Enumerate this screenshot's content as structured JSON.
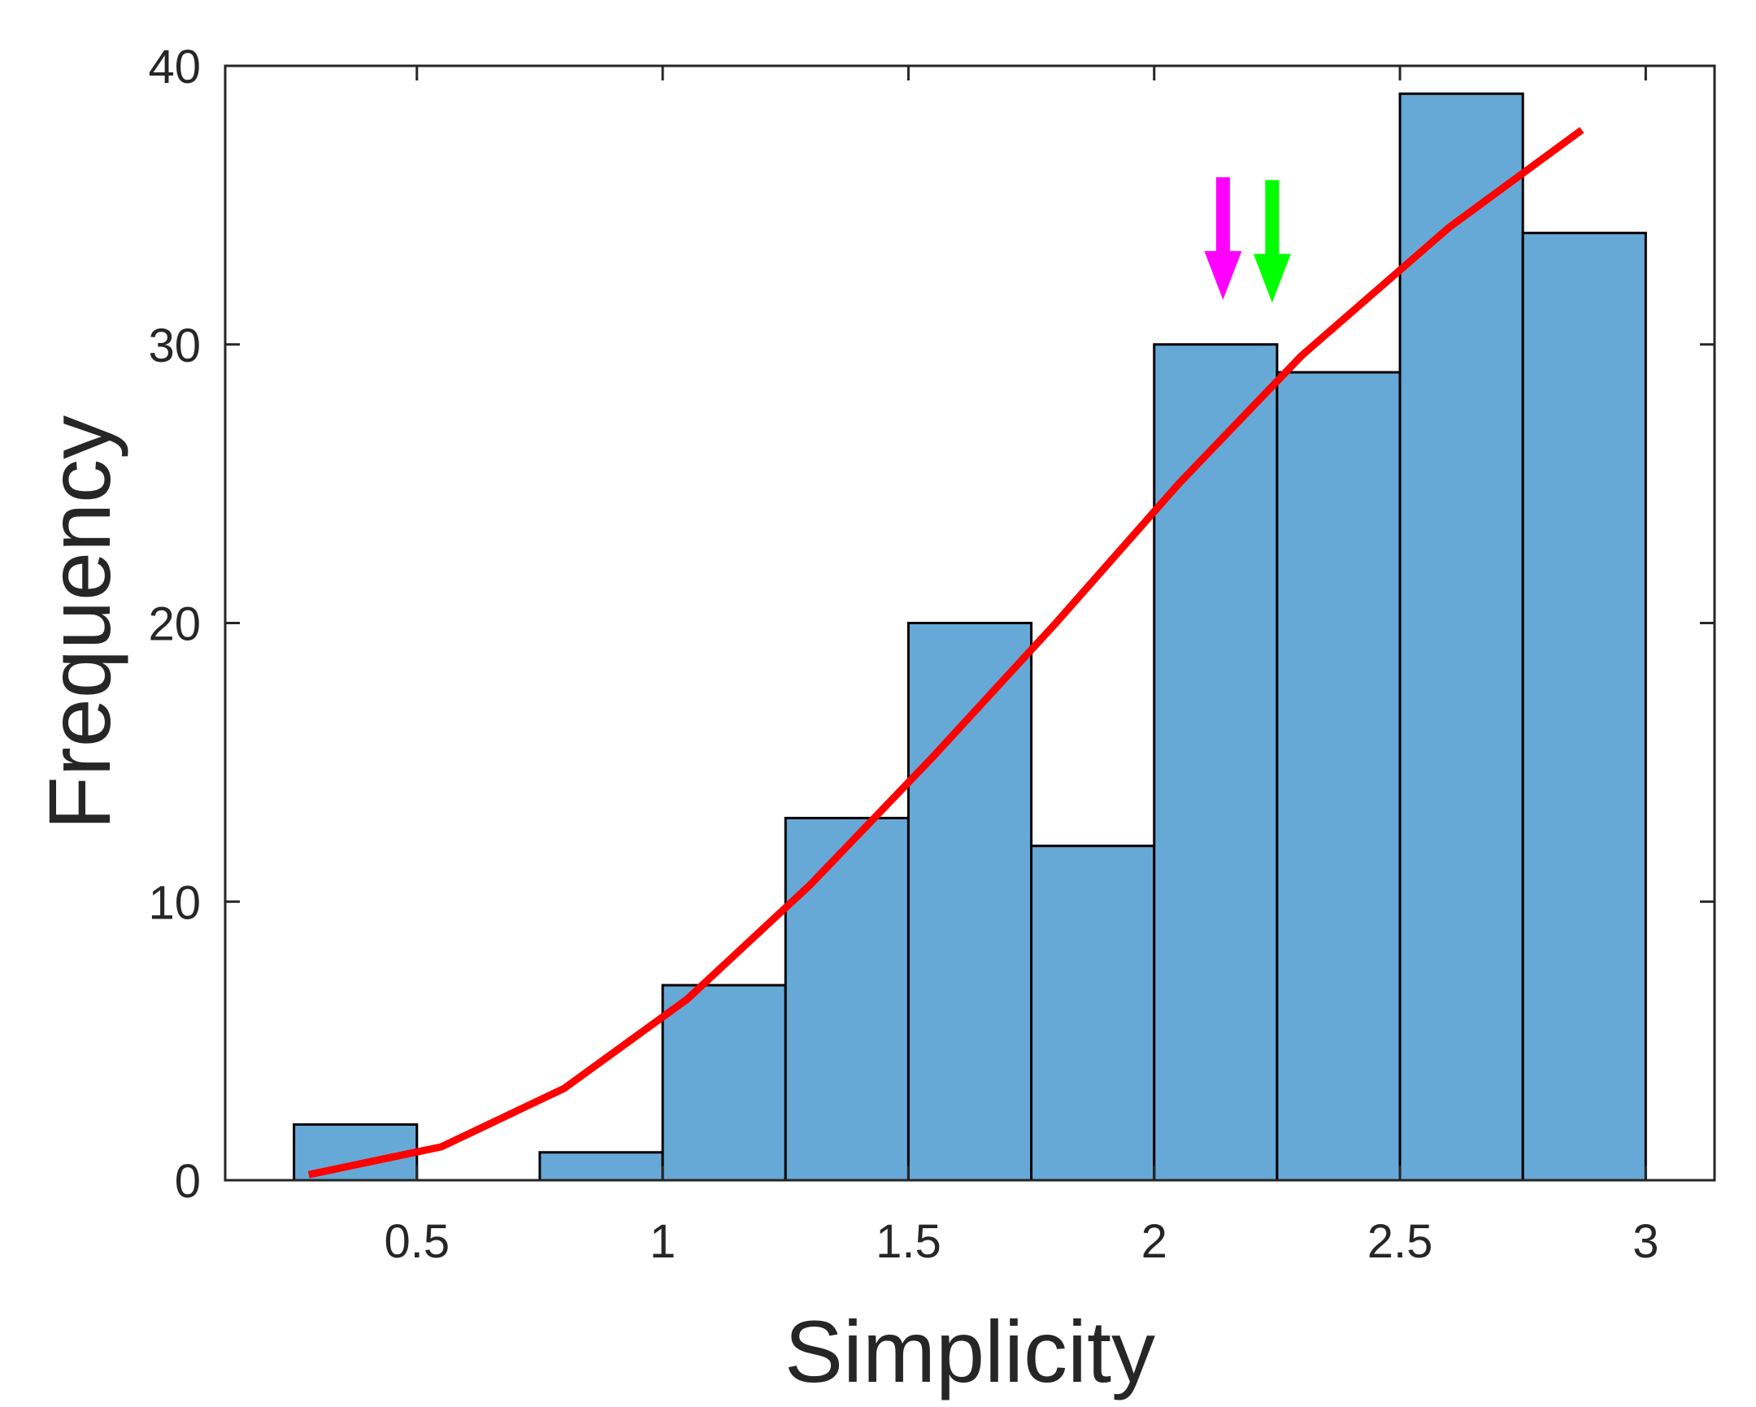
{
  "chart_data": {
    "type": "bar",
    "subtype": "histogram-with-fit-curve",
    "title": "",
    "xlabel": "Simplicity",
    "ylabel": "Frequency",
    "xlim": [
      0.11,
      3.14
    ],
    "ylim": [
      0,
      40
    ],
    "grid": false,
    "legend": null,
    "x_ticks": [
      0.5,
      1,
      1.5,
      2,
      2.5,
      3
    ],
    "x_tick_labels": [
      "0.5",
      "1",
      "1.5",
      "2",
      "2.5",
      "3"
    ],
    "y_ticks": [
      0,
      10,
      20,
      30,
      40
    ],
    "y_tick_labels": [
      "0",
      "10",
      "20",
      "30",
      "40"
    ],
    "bin_width": 0.25,
    "bins": [
      {
        "start": 0.25,
        "end": 0.5,
        "count": 2
      },
      {
        "start": 0.5,
        "end": 0.75,
        "count": 0
      },
      {
        "start": 0.75,
        "end": 1.0,
        "count": 1
      },
      {
        "start": 1.0,
        "end": 1.25,
        "count": 7
      },
      {
        "start": 1.25,
        "end": 1.5,
        "count": 13
      },
      {
        "start": 1.5,
        "end": 1.75,
        "count": 20
      },
      {
        "start": 1.75,
        "end": 2.0,
        "count": 12
      },
      {
        "start": 2.0,
        "end": 2.25,
        "count": 30
      },
      {
        "start": 2.25,
        "end": 2.5,
        "count": 29
      },
      {
        "start": 2.5,
        "end": 2.75,
        "count": 39
      },
      {
        "start": 2.75,
        "end": 3.0,
        "count": 34
      }
    ],
    "series": [
      {
        "name": "fit-curve",
        "type": "line",
        "color": "#ff0000",
        "x": [
          0.28,
          0.55,
          0.8,
          1.05,
          1.3,
          1.55,
          1.8,
          2.05,
          2.3,
          2.6,
          2.87
        ],
        "y": [
          0.2,
          1.2,
          3.3,
          6.5,
          10.6,
          15.2,
          20.0,
          25.0,
          29.6,
          34.2,
          37.7
        ]
      }
    ],
    "annotations": [
      {
        "type": "arrow",
        "color": "#ff00ff",
        "x": 2.14,
        "y_top": 36.0,
        "y_tip": 31.6
      },
      {
        "type": "arrow",
        "color": "#00ff00",
        "x": 2.24,
        "y_top": 35.9,
        "y_tip": 31.5
      }
    ],
    "colors": {
      "bar_fill": "#67a9d6",
      "bar_edge": "#000000",
      "axis": "#262626",
      "fit_curve": "#ff0000"
    }
  }
}
